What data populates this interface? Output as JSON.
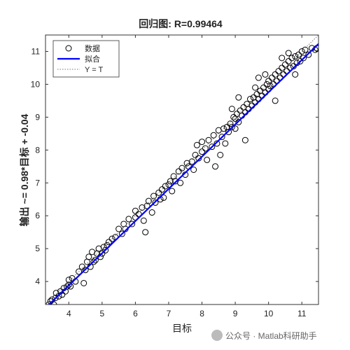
{
  "chart_data": {
    "type": "scatter",
    "title": "回归图: R=0.99464",
    "xlabel": "目标",
    "ylabel": "输出 ~= 0.98*目标 + -0.04",
    "xlim": [
      3.3,
      11.5
    ],
    "ylim": [
      3.3,
      11.5
    ],
    "xticks": [
      4,
      5,
      6,
      7,
      8,
      9,
      10,
      11
    ],
    "yticks": [
      4,
      5,
      6,
      7,
      8,
      9,
      10,
      11
    ],
    "grid": false,
    "legend_position": "top-left",
    "legend": [
      {
        "label": "数据",
        "style": "circle-marker"
      },
      {
        "label": "拟合",
        "style": "solid-blue"
      },
      {
        "label": "Y = T",
        "style": "dotted-gray"
      }
    ],
    "fit": {
      "slope": 0.98,
      "intercept": -0.04,
      "color": "#0000ff"
    },
    "identity": {
      "slope": 1,
      "intercept": 0,
      "color": "#777777"
    },
    "points": [
      [
        3.4,
        3.3
      ],
      [
        3.45,
        3.4
      ],
      [
        3.5,
        3.45
      ],
      [
        3.55,
        3.3
      ],
      [
        3.6,
        3.5
      ],
      [
        3.62,
        3.65
      ],
      [
        3.7,
        3.55
      ],
      [
        3.75,
        3.7
      ],
      [
        3.8,
        3.6
      ],
      [
        3.85,
        3.8
      ],
      [
        3.9,
        3.7
      ],
      [
        3.95,
        3.85
      ],
      [
        4.0,
        3.9
      ],
      [
        4.0,
        4.05
      ],
      [
        4.05,
        3.85
      ],
      [
        4.1,
        4.1
      ],
      [
        4.2,
        4.0
      ],
      [
        4.3,
        4.3
      ],
      [
        4.4,
        4.45
      ],
      [
        4.45,
        3.95
      ],
      [
        4.5,
        4.35
      ],
      [
        4.55,
        4.6
      ],
      [
        4.6,
        4.75
      ],
      [
        4.65,
        4.45
      ],
      [
        4.7,
        4.9
      ],
      [
        4.75,
        4.6
      ],
      [
        4.8,
        4.65
      ],
      [
        4.85,
        4.85
      ],
      [
        4.9,
        5.0
      ],
      [
        4.95,
        4.75
      ],
      [
        5.0,
        4.85
      ],
      [
        5.05,
        5.05
      ],
      [
        5.1,
        4.95
      ],
      [
        5.15,
        5.1
      ],
      [
        5.2,
        5.2
      ],
      [
        5.3,
        5.3
      ],
      [
        5.4,
        5.35
      ],
      [
        5.5,
        5.6
      ],
      [
        5.6,
        5.45
      ],
      [
        5.65,
        5.75
      ],
      [
        5.7,
        5.6
      ],
      [
        5.8,
        5.9
      ],
      [
        5.9,
        5.75
      ],
      [
        6.0,
        5.95
      ],
      [
        6.0,
        6.15
      ],
      [
        6.1,
        6.05
      ],
      [
        6.2,
        6.25
      ],
      [
        6.25,
        5.85
      ],
      [
        6.3,
        5.5
      ],
      [
        6.35,
        6.3
      ],
      [
        6.4,
        6.45
      ],
      [
        6.5,
        6.1
      ],
      [
        6.55,
        6.6
      ],
      [
        6.6,
        6.4
      ],
      [
        6.7,
        6.7
      ],
      [
        6.75,
        6.5
      ],
      [
        6.8,
        6.8
      ],
      [
        6.85,
        6.55
      ],
      [
        6.9,
        6.9
      ],
      [
        7.0,
        6.95
      ],
      [
        7.05,
        7.05
      ],
      [
        7.1,
        6.75
      ],
      [
        7.15,
        7.2
      ],
      [
        7.2,
        7.05
      ],
      [
        7.3,
        7.35
      ],
      [
        7.35,
        7.0
      ],
      [
        7.4,
        7.45
      ],
      [
        7.5,
        7.25
      ],
      [
        7.55,
        7.6
      ],
      [
        7.6,
        7.5
      ],
      [
        7.7,
        7.65
      ],
      [
        7.75,
        7.4
      ],
      [
        7.8,
        7.85
      ],
      [
        7.85,
        8.15
      ],
      [
        7.9,
        7.75
      ],
      [
        8.0,
        7.95
      ],
      [
        8.0,
        8.25
      ],
      [
        8.1,
        8.05
      ],
      [
        8.15,
        7.7
      ],
      [
        8.2,
        8.3
      ],
      [
        8.3,
        8.1
      ],
      [
        8.35,
        8.45
      ],
      [
        8.4,
        7.5
      ],
      [
        8.45,
        8.2
      ],
      [
        8.5,
        8.6
      ],
      [
        8.55,
        7.85
      ],
      [
        8.6,
        8.4
      ],
      [
        8.65,
        8.65
      ],
      [
        8.7,
        8.2
      ],
      [
        8.75,
        8.7
      ],
      [
        8.8,
        8.55
      ],
      [
        8.85,
        8.8
      ],
      [
        8.9,
        8.7
      ],
      [
        8.95,
        9.0
      ],
      [
        9.0,
        8.65
      ],
      [
        9.0,
        8.95
      ],
      [
        9.05,
        9.1
      ],
      [
        9.1,
        8.85
      ],
      [
        9.15,
        9.2
      ],
      [
        9.2,
        9.05
      ],
      [
        9.25,
        9.3
      ],
      [
        9.3,
        9.15
      ],
      [
        9.35,
        9.4
      ],
      [
        9.4,
        9.25
      ],
      [
        9.45,
        9.55
      ],
      [
        9.5,
        9.35
      ],
      [
        9.55,
        9.6
      ],
      [
        9.6,
        9.45
      ],
      [
        9.65,
        9.7
      ],
      [
        9.7,
        9.55
      ],
      [
        9.75,
        9.8
      ],
      [
        9.8,
        9.65
      ],
      [
        9.85,
        9.9
      ],
      [
        9.9,
        9.75
      ],
      [
        9.95,
        10.0
      ],
      [
        10.0,
        9.85
      ],
      [
        10.0,
        10.1
      ],
      [
        10.05,
        9.95
      ],
      [
        10.1,
        10.2
      ],
      [
        10.15,
        10.0
      ],
      [
        10.2,
        10.3
      ],
      [
        10.25,
        10.1
      ],
      [
        10.3,
        10.4
      ],
      [
        10.35,
        10.2
      ],
      [
        10.4,
        10.5
      ],
      [
        10.45,
        10.3
      ],
      [
        10.5,
        10.6
      ],
      [
        10.55,
        10.4
      ],
      [
        10.6,
        10.7
      ],
      [
        10.65,
        10.5
      ],
      [
        10.7,
        10.8
      ],
      [
        10.75,
        10.55
      ],
      [
        10.8,
        10.85
      ],
      [
        10.85,
        10.65
      ],
      [
        10.9,
        10.9
      ],
      [
        10.95,
        10.7
      ],
      [
        11.0,
        11.0
      ],
      [
        11.05,
        10.8
      ],
      [
        11.1,
        11.05
      ],
      [
        11.2,
        10.9
      ],
      [
        11.3,
        11.1
      ],
      [
        11.4,
        11.05
      ],
      [
        11.45,
        11.1
      ],
      [
        9.3,
        8.3
      ],
      [
        9.6,
        9.9
      ],
      [
        9.9,
        10.3
      ],
      [
        10.2,
        9.5
      ],
      [
        10.8,
        10.3
      ],
      [
        9.1,
        9.6
      ],
      [
        8.9,
        9.25
      ],
      [
        9.7,
        10.2
      ],
      [
        10.4,
        10.8
      ],
      [
        10.6,
        10.95
      ]
    ]
  },
  "watermark": "公众号 · Matlab科研助手"
}
